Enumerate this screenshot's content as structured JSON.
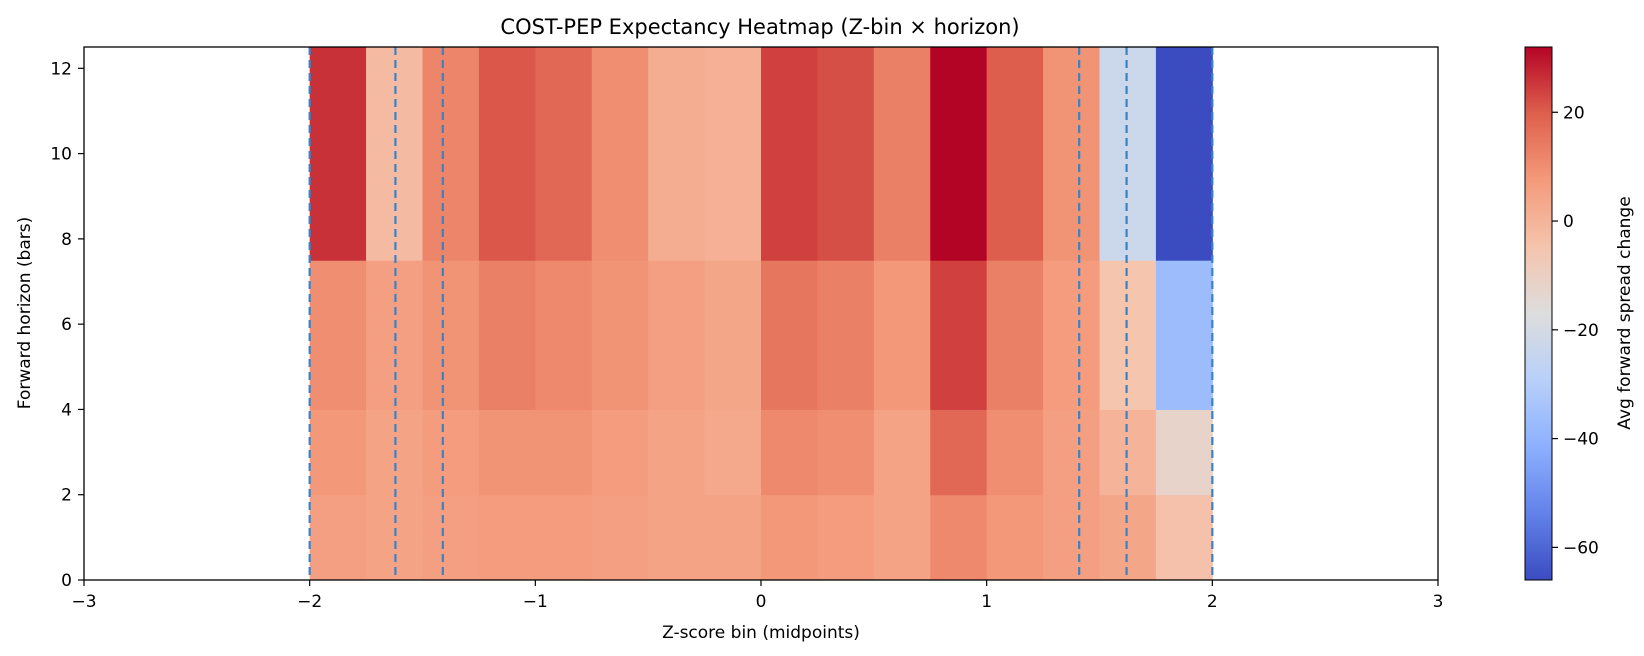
{
  "chart_data": {
    "type": "heatmap",
    "title": "COST-PEP Expectancy Heatmap (Z-bin × horizon)",
    "xlabel": "Z-score bin (midpoints)",
    "ylabel": "Forward horizon (bars)",
    "xlim": [
      -3,
      3
    ],
    "ylim": [
      0,
      12.5
    ],
    "x_ticks": [
      {
        "value": -3,
        "label": "−3"
      },
      {
        "value": -2,
        "label": "−2"
      },
      {
        "value": -1,
        "label": "−1"
      },
      {
        "value": 0,
        "label": "0"
      },
      {
        "value": 1,
        "label": "1"
      },
      {
        "value": 2,
        "label": "2"
      },
      {
        "value": 3,
        "label": "3"
      }
    ],
    "y_ticks": [
      {
        "value": 0,
        "label": "0"
      },
      {
        "value": 2,
        "label": "2"
      },
      {
        "value": 4,
        "label": "4"
      },
      {
        "value": 6,
        "label": "6"
      },
      {
        "value": 8,
        "label": "8"
      },
      {
        "value": 10,
        "label": "10"
      },
      {
        "value": 12,
        "label": "12"
      }
    ],
    "x_bin_edges": [
      -2.0,
      -1.75,
      -1.5,
      -1.25,
      -1.0,
      -0.75,
      -0.5,
      -0.25,
      0.0,
      0.25,
      0.5,
      0.75,
      1.0,
      1.25,
      1.5,
      1.75,
      2.0
    ],
    "y_bin_edges": [
      0,
      2,
      4,
      7.5,
      12.5
    ],
    "values": [
      [
        6,
        5,
        6,
        7,
        7,
        6,
        5,
        5,
        8,
        7,
        5,
        11,
        8,
        6,
        4,
        -4
      ],
      [
        8,
        5,
        7,
        9,
        9,
        7,
        5,
        3,
        11,
        10,
        5,
        18,
        10,
        6,
        0,
        -12
      ],
      [
        10,
        6,
        9,
        13,
        11,
        9,
        6,
        4,
        15,
        13,
        8,
        24,
        13,
        7,
        -5,
        -37
      ],
      [
        26,
        -2,
        12,
        21,
        18,
        10,
        2,
        1,
        24,
        22,
        13,
        32,
        20,
        9,
        -23,
        -66
      ]
    ],
    "vlines": [
      -2.0,
      -1.62,
      -1.41,
      1.41,
      1.62,
      2.0
    ],
    "vline_color": "#3b82c4",
    "colormap": "coolwarm",
    "colorbar": {
      "label": "Avg forward spread change",
      "vmin": -66,
      "vmax": 32,
      "ticks": [
        {
          "value": 20,
          "label": "20"
        },
        {
          "value": 0,
          "label": "0"
        },
        {
          "value": -20,
          "label": "−20"
        },
        {
          "value": -40,
          "label": "−40"
        },
        {
          "value": -60,
          "label": "−60"
        }
      ]
    }
  }
}
